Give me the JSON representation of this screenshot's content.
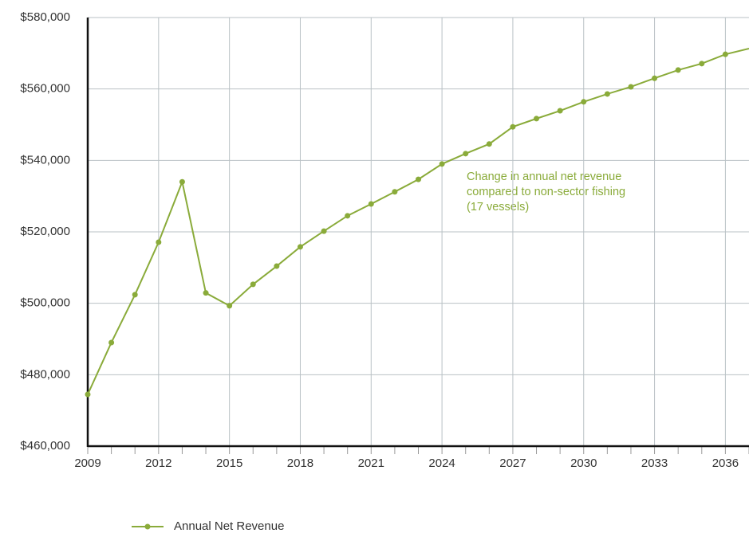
{
  "chart_data": {
    "type": "line",
    "annotation": [
      "Change in annual net revenue",
      "compared to non-sector fishing",
      "(17 vessels)"
    ],
    "x": [
      2009,
      2010,
      2011,
      2012,
      2013,
      2014,
      2015,
      2016,
      2017,
      2018,
      2019,
      2020,
      2021,
      2022,
      2023,
      2024,
      2025,
      2026,
      2027,
      2028,
      2029,
      2030,
      2031,
      2032,
      2033,
      2034,
      2035,
      2036,
      2037
    ],
    "series": [
      {
        "name": "Annual Net Revenue",
        "color": "#8aab3a",
        "values": [
          474500,
          489000,
          502400,
          517100,
          534000,
          502900,
          499300,
          505300,
          510400,
          515800,
          520200,
          524500,
          527800,
          531200,
          534700,
          539000,
          541900,
          544600,
          549400,
          551700,
          553900,
          556400,
          558600,
          560600,
          563000,
          565300,
          567100,
          569700,
          571300
        ]
      }
    ],
    "xlim": [
      2009,
      2037
    ],
    "xticks": [
      2009,
      2012,
      2015,
      2018,
      2021,
      2024,
      2027,
      2030,
      2033,
      2036
    ],
    "ylim": [
      460000,
      580000
    ],
    "yticks": [
      {
        "value": 460000,
        "label": "$460,000"
      },
      {
        "value": 480000,
        "label": "$480,000"
      },
      {
        "value": 500000,
        "label": "$500,000"
      },
      {
        "value": 520000,
        "label": "$520,000"
      },
      {
        "value": 540000,
        "label": "$540,000"
      },
      {
        "value": 560000,
        "label": "$560,000"
      },
      {
        "value": 580000,
        "label": "$580,000"
      }
    ],
    "grid": true
  }
}
